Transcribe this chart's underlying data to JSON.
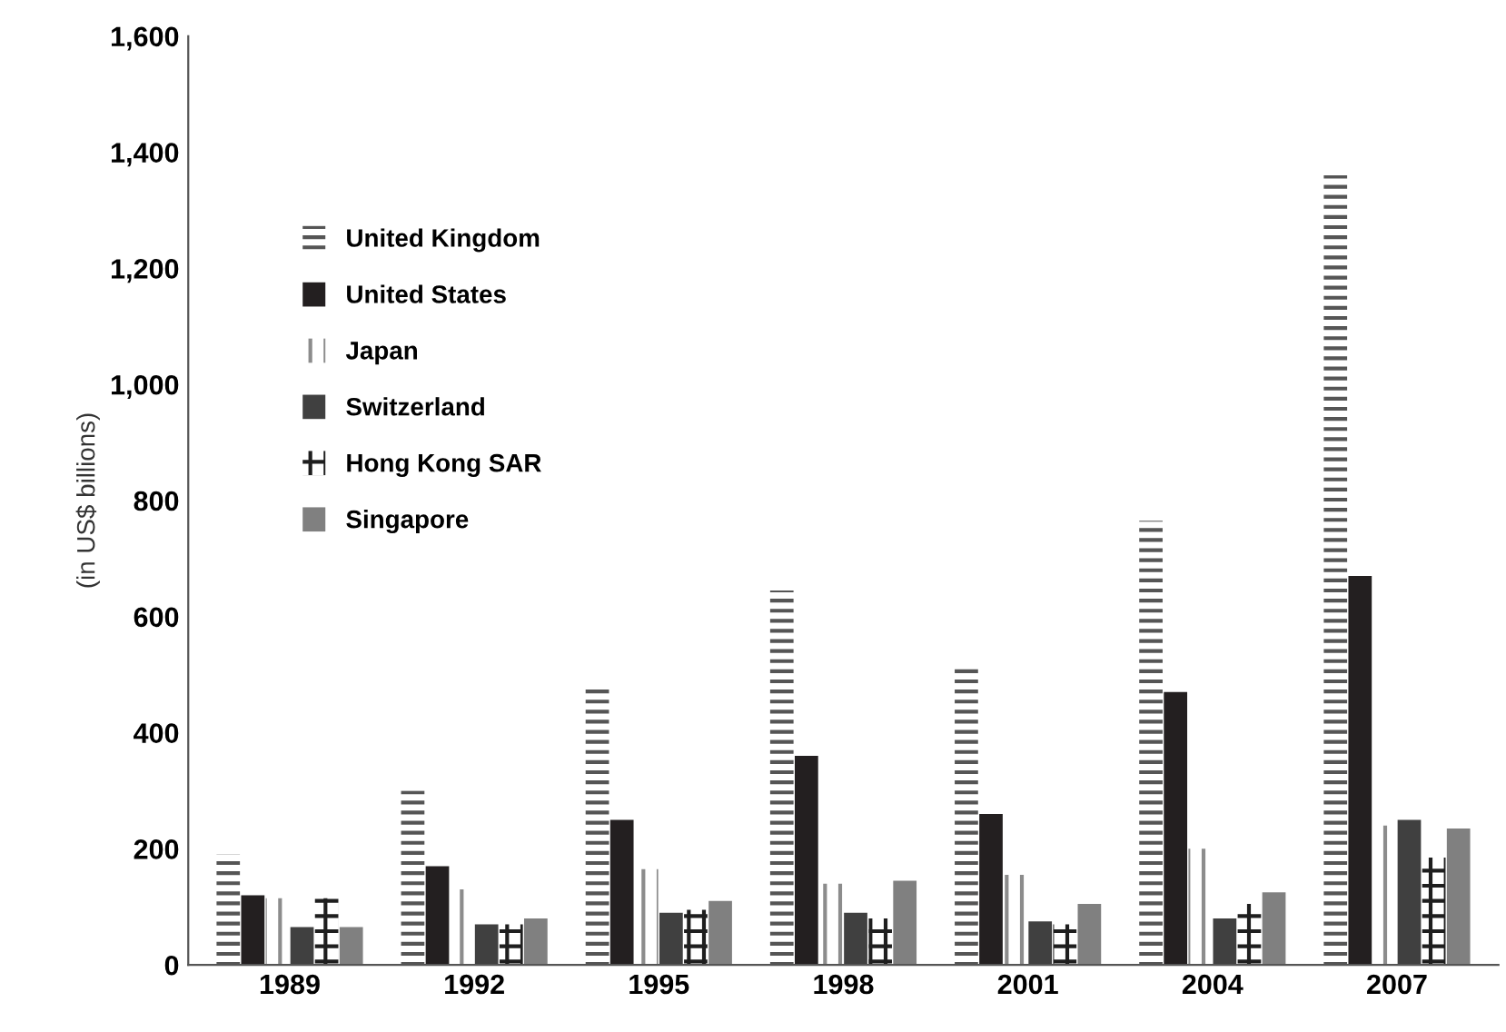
{
  "chart_data": {
    "type": "bar",
    "ylabel": "(in US$ billions)",
    "categories": [
      "1989",
      "1992",
      "1995",
      "1998",
      "2001",
      "2004",
      "2007"
    ],
    "series": [
      {
        "name": "United Kingdom",
        "color": "#555555",
        "values": [
          190,
          300,
          475,
          645,
          515,
          765,
          1360
        ]
      },
      {
        "name": "United States",
        "color": "#231f20",
        "values": [
          120,
          170,
          250,
          360,
          260,
          470,
          670
        ]
      },
      {
        "name": "Japan",
        "color": "#8c8c8c",
        "values": [
          115,
          130,
          165,
          140,
          155,
          200,
          240
        ]
      },
      {
        "name": "Switzerland",
        "color": "#404040",
        "values": [
          65,
          70,
          90,
          90,
          75,
          80,
          250
        ]
      },
      {
        "name": "Hong Kong SAR",
        "color": "#1e1e1e",
        "values": [
          115,
          70,
          95,
          80,
          70,
          105,
          185
        ]
      },
      {
        "name": "Singapore",
        "color": "#808080",
        "values": [
          65,
          80,
          110,
          145,
          105,
          125,
          235
        ]
      }
    ],
    "ylim": [
      0,
      1600
    ],
    "yticks": [
      {
        "value": 0,
        "label": "0"
      },
      {
        "value": 200,
        "label": "200"
      },
      {
        "value": 400,
        "label": "400"
      },
      {
        "value": 600,
        "label": "600"
      },
      {
        "value": 800,
        "label": "800"
      },
      {
        "value": 1000,
        "label": "1,000"
      },
      {
        "value": 1200,
        "label": "1,200"
      },
      {
        "value": 1400,
        "label": "1,400"
      },
      {
        "value": 1600,
        "label": "1,600"
      }
    ],
    "grid": false,
    "legend": "top left"
  }
}
